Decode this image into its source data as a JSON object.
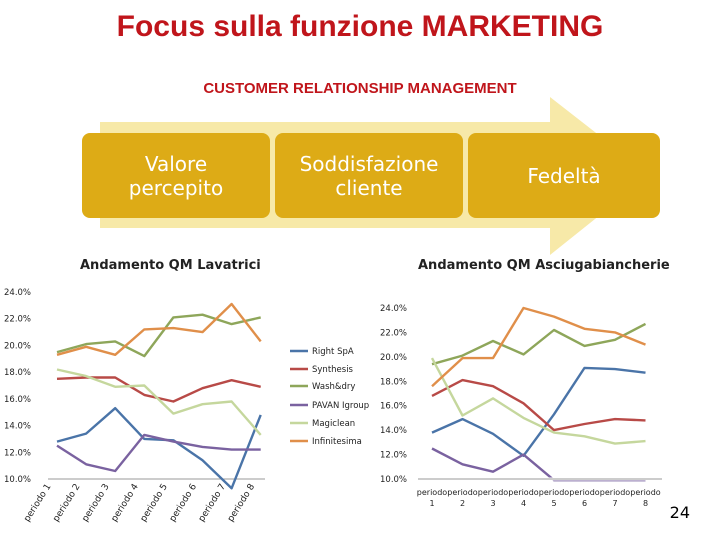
{
  "header": {
    "title": "Focus sulla funzione MARKETING",
    "subtitle": "CUSTOMER RELATIONSHIP MANAGEMENT"
  },
  "flow": {
    "box1": [
      "Valore",
      "percepito"
    ],
    "box2": [
      "Soddisfazione",
      "cliente"
    ],
    "box3": "Fedeltà"
  },
  "colors": {
    "box": "#ddab16",
    "arrow": "#f7e9a8",
    "title": "#c0151b"
  },
  "page_number": "24",
  "chart_data": [
    {
      "type": "line",
      "title": "Andamento QM Lavatrici",
      "categories": [
        "periodo 1",
        "periodo 2",
        "periodo 3",
        "periodo 4",
        "periodo 5",
        "periodo 6",
        "periodo 7",
        "periodo 8"
      ],
      "ylim": [
        10.0,
        24.0
      ],
      "yticks": [
        "10.0%",
        "12.0%",
        "14.0%",
        "16.0%",
        "18.0%",
        "20.0%",
        "22.0%",
        "24.0%"
      ],
      "legend": "center-right",
      "series": [
        {
          "name": "Right SpA",
          "color": "#4a74a8",
          "values": [
            12.8,
            13.4,
            15.3,
            13.0,
            12.9,
            11.4,
            9.3,
            14.8
          ]
        },
        {
          "name": "Synthesis",
          "color": "#b84a47",
          "values": [
            17.5,
            17.6,
            17.6,
            16.3,
            15.8,
            16.8,
            17.4,
            16.9
          ]
        },
        {
          "name": "Wash&dry",
          "color": "#8ea65a",
          "values": [
            19.5,
            20.1,
            20.3,
            19.2,
            22.1,
            22.3,
            21.6,
            22.1
          ]
        },
        {
          "name": "PAVAN Igroup",
          "color": "#7a62a0",
          "values": [
            12.5,
            11.1,
            10.6,
            13.3,
            12.8,
            12.4,
            12.2,
            12.2
          ]
        },
        {
          "name": "Magiclean",
          "color": "#c5d79d",
          "values": [
            18.2,
            17.7,
            16.9,
            17.0,
            14.9,
            15.6,
            15.8,
            13.3
          ]
        },
        {
          "name": "Infinitesima",
          "color": "#e08f4a",
          "values": [
            19.3,
            19.9,
            19.3,
            21.2,
            21.3,
            21.0,
            23.1,
            20.3
          ]
        }
      ]
    },
    {
      "type": "line",
      "title": "Andamento QM Asciugabiancherie",
      "categories": [
        "periodo 1",
        "periodo 2",
        "periodo 3",
        "periodo 4",
        "periodo 5",
        "periodo 6",
        "periodo 7",
        "periodo 8"
      ],
      "ylim": [
        10.0,
        24.0
      ],
      "yticks": [
        "10.0%",
        "12.0%",
        "14.0%",
        "16.0%",
        "18.0%",
        "20.0%",
        "22.0%",
        "24.0%"
      ],
      "legend": "none",
      "series": [
        {
          "name": "Right SpA",
          "color": "#4a74a8",
          "values": [
            13.8,
            14.9,
            13.7,
            11.9,
            15.3,
            19.1,
            19.0,
            18.7
          ]
        },
        {
          "name": "Synthesis",
          "color": "#b84a47",
          "values": [
            16.8,
            18.1,
            17.6,
            16.2,
            14.0,
            14.5,
            14.9,
            14.8
          ]
        },
        {
          "name": "Wash&dry",
          "color": "#8ea65a",
          "values": [
            19.4,
            20.1,
            21.3,
            20.2,
            22.2,
            20.9,
            21.4,
            22.7
          ]
        },
        {
          "name": "PAVAN Igroup",
          "color": "#7a62a0",
          "values": [
            12.5,
            11.2,
            10.6,
            12.0,
            9.8,
            9.8,
            9.8,
            9.8
          ]
        },
        {
          "name": "Magiclean",
          "color": "#c5d79d",
          "values": [
            19.9,
            15.2,
            16.6,
            15.0,
            13.8,
            13.5,
            12.9,
            13.1
          ]
        },
        {
          "name": "Infinitesima",
          "color": "#e08f4a",
          "values": [
            17.6,
            19.9,
            19.9,
            24.0,
            23.3,
            22.3,
            22.0,
            21.0
          ]
        }
      ],
      "xlabels_top": [
        "periodo",
        "periodo",
        "periodo",
        "periodo",
        "periodo",
        "periodo",
        "periodo",
        "periodo"
      ],
      "xlabels_bottom": [
        "1",
        "2",
        "3",
        "4",
        "5",
        "6",
        "7",
        "8"
      ]
    }
  ]
}
